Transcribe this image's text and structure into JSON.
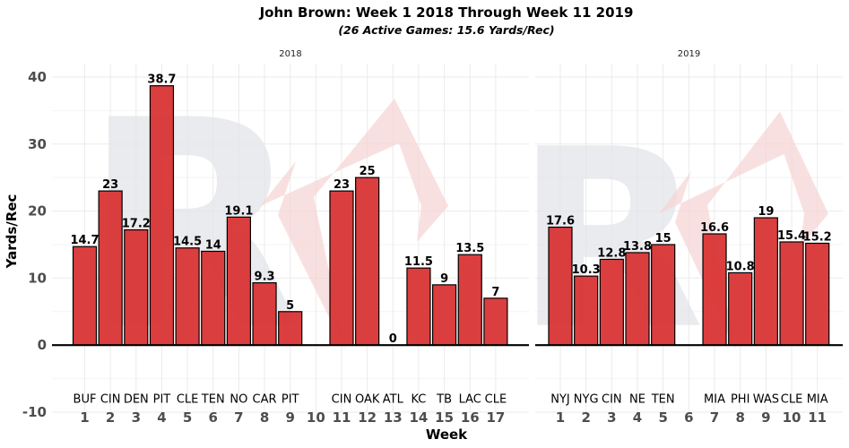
{
  "chart_data": {
    "type": "bar",
    "title": "John Brown: Week 1 2018 Through Week 11 2019",
    "subtitle": "(26 Active Games: 15.6 Yards/Rec)",
    "xlabel": "Week",
    "ylabel": "Yards/Rec",
    "ylim": [
      -10,
      42
    ],
    "yticks": [
      -10,
      0,
      10,
      20,
      30,
      40
    ],
    "grid": true,
    "colors": {
      "bar": "#d93434",
      "watermark_letter": "#e3e5e9",
      "watermark_shape": "#f6d3d3"
    },
    "panels": [
      {
        "label": "2018",
        "weeks": [
          1,
          2,
          3,
          4,
          5,
          6,
          7,
          8,
          9,
          10,
          11,
          12,
          13,
          14,
          15,
          16,
          17
        ],
        "bars": [
          {
            "week": 1,
            "opponent": "BUF",
            "value": 14.7,
            "label": "14.7"
          },
          {
            "week": 2,
            "opponent": "CIN",
            "value": 23,
            "label": "23"
          },
          {
            "week": 3,
            "opponent": "DEN",
            "value": 17.2,
            "label": "17.2"
          },
          {
            "week": 4,
            "opponent": "PIT",
            "value": 38.7,
            "label": "38.7"
          },
          {
            "week": 5,
            "opponent": "CLE",
            "value": 14.5,
            "label": "14.5"
          },
          {
            "week": 6,
            "opponent": "TEN",
            "value": 14,
            "label": "14"
          },
          {
            "week": 7,
            "opponent": "NO",
            "value": 19.1,
            "label": "19.1"
          },
          {
            "week": 8,
            "opponent": "CAR",
            "value": 9.3,
            "label": "9.3"
          },
          {
            "week": 9,
            "opponent": "PIT",
            "value": 5,
            "label": "5"
          },
          {
            "week": 11,
            "opponent": "CIN",
            "value": 23,
            "label": "23"
          },
          {
            "week": 12,
            "opponent": "OAK",
            "value": 25,
            "label": "25"
          },
          {
            "week": 13,
            "opponent": "ATL",
            "value": 0,
            "label": "0"
          },
          {
            "week": 14,
            "opponent": "KC",
            "value": 11.5,
            "label": "11.5"
          },
          {
            "week": 15,
            "opponent": "TB",
            "value": 9,
            "label": "9"
          },
          {
            "week": 16,
            "opponent": "LAC",
            "value": 13.5,
            "label": "13.5"
          },
          {
            "week": 17,
            "opponent": "CLE",
            "value": 7,
            "label": "7"
          }
        ]
      },
      {
        "label": "2019",
        "weeks": [
          1,
          2,
          3,
          4,
          5,
          6,
          7,
          8,
          9,
          10,
          11
        ],
        "bars": [
          {
            "week": 1,
            "opponent": "NYJ",
            "value": 17.6,
            "label": "17.6"
          },
          {
            "week": 2,
            "opponent": "NYG",
            "value": 10.3,
            "label": "10.3"
          },
          {
            "week": 3,
            "opponent": "CIN",
            "value": 12.8,
            "label": "12.8"
          },
          {
            "week": 4,
            "opponent": "NE",
            "value": 13.8,
            "label": "13.8"
          },
          {
            "week": 5,
            "opponent": "TEN",
            "value": 15,
            "label": "15"
          },
          {
            "week": 7,
            "opponent": "MIA",
            "value": 16.6,
            "label": "16.6"
          },
          {
            "week": 8,
            "opponent": "PHI",
            "value": 10.8,
            "label": "10.8"
          },
          {
            "week": 9,
            "opponent": "WAS",
            "value": 19,
            "label": "19"
          },
          {
            "week": 10,
            "opponent": "CLE",
            "value": 15.4,
            "label": "15.4"
          },
          {
            "week": 11,
            "opponent": "MIA",
            "value": 15.2,
            "label": "15.2"
          }
        ]
      }
    ]
  }
}
